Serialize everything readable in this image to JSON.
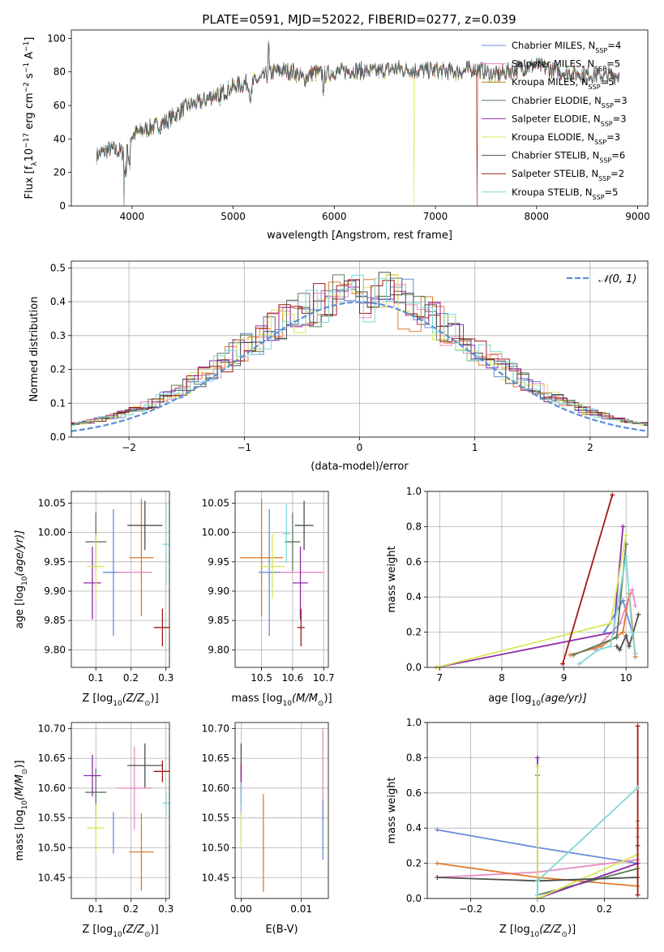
{
  "chart_data": [
    {
      "id": "spectrum",
      "type": "line",
      "title": "PLATE=0591, MJD=52022, FIBERID=0277, z=0.039",
      "xlabel": "wavelength [Angstrom, rest frame]",
      "ylabel_parts": [
        "Flux [f",
        "λ",
        "10",
        "−17",
        " erg cm",
        "−2",
        " s",
        "−1",
        " A",
        "−1",
        "]"
      ],
      "xlim": [
        3400,
        9100
      ],
      "ylim": [
        0,
        105
      ],
      "xticks": [
        4000,
        5000,
        6000,
        7000,
        8000,
        9000
      ],
      "yticks": [
        0,
        20,
        40,
        60,
        80,
        100
      ],
      "grid": false,
      "legend_position": "top-right",
      "continuum": {
        "x": [
          3650,
          3700,
          3800,
          3900,
          4000,
          4100,
          4200,
          4300,
          4400,
          4500,
          4600,
          4700,
          4800,
          4900,
          5000,
          5100,
          5200,
          5300,
          5400,
          5500,
          5600,
          5700,
          5800,
          5900,
          6000,
          6200,
          6400,
          6600,
          6800,
          7000,
          7200,
          7400,
          7600,
          7800,
          8000,
          8200,
          8400,
          8600,
          8800
        ],
        "y": [
          30,
          32,
          34,
          32,
          42,
          45,
          47,
          49,
          53,
          58,
          61,
          62,
          66,
          68,
          71,
          73,
          74,
          77,
          80,
          81,
          80,
          76,
          80,
          78,
          80,
          81,
          80,
          82,
          81,
          81,
          80,
          82,
          78,
          82,
          84,
          80,
          79,
          78,
          78
        ]
      },
      "series": [
        {
          "name": "Chabrier MILES, N",
          "subscript": "SSP",
          "suffix": "=4",
          "color": "#6a8bdc"
        },
        {
          "name": "Salpeter MILES, N",
          "subscript": "SSP",
          "suffix": "=5",
          "color": "#e88ac4"
        },
        {
          "name": "Kroupa MILES, N",
          "subscript": "SSP",
          "suffix": "=5",
          "color": "#b8860b"
        },
        {
          "name": "Chabrier ELODIE, N",
          "subscript": "SSP",
          "suffix": "=3",
          "color": "#5a7a5a"
        },
        {
          "name": "Salpeter ELODIE, N",
          "subscript": "SSP",
          "suffix": "=3",
          "color": "#8e2ca8"
        },
        {
          "name": "Kroupa ELODIE, N",
          "subscript": "SSP",
          "suffix": "=3",
          "color": "#d8e85a"
        },
        {
          "name": "Chabrier STELIB, N",
          "subscript": "SSP",
          "suffix": "=6",
          "color": "#4d4d4d"
        },
        {
          "name": "Salpeter STELIB, N",
          "subscript": "SSP",
          "suffix": "=2",
          "color": "#a01818"
        },
        {
          "name": "Kroupa STELIB, N",
          "subscript": "SSP",
          "suffix": "=5",
          "color": "#7fd6d6"
        }
      ]
    },
    {
      "id": "residuals",
      "type": "histogram",
      "xlabel": "(data-model)/error",
      "ylabel": "Normed distribution",
      "xlim": [
        -2.5,
        2.5
      ],
      "ylim": [
        0,
        0.52
      ],
      "xticks": [
        -2,
        -1,
        0,
        1,
        2
      ],
      "xtick_labels": [
        "−2",
        "−1",
        "0",
        "1",
        "2"
      ],
      "yticks": [
        0.0,
        0.1,
        0.2,
        0.3,
        0.4,
        0.5
      ],
      "ytick_labels": [
        "0.0",
        "0.1",
        "0.2",
        "0.3",
        "0.4",
        "0.5"
      ],
      "grid": true,
      "legend": "𝒩(0, 1)",
      "legend_position": "top-right",
      "normal_curve_color": "#5b8fd6"
    },
    {
      "id": "age_vs_Z",
      "type": "errorbar",
      "xlabel_parts": [
        "Z [log",
        "10",
        "(Z/Z",
        "⊙",
        ")]"
      ],
      "ylabel_parts": [
        "age  [log",
        "10",
        "(age/yr)]"
      ],
      "xlim": [
        0.03,
        0.31
      ],
      "ylim": [
        9.77,
        10.07
      ],
      "xticks": [
        0.1,
        0.2,
        0.3
      ],
      "xtick_labels": [
        "0.1",
        "0.2",
        "0.3"
      ],
      "yticks": [
        9.8,
        9.85,
        9.9,
        9.95,
        10.0,
        10.05
      ],
      "ytick_labels": [
        "9.80",
        "9.85",
        "9.90",
        "9.95",
        "10.00",
        "10.05"
      ],
      "grid": true,
      "points": [
        {
          "x": 0.15,
          "xerr": 0.03,
          "y": 9.932,
          "yerr": 0.108,
          "color": "#6a8bdc"
        },
        {
          "x": 0.21,
          "xerr": 0.05,
          "y": 9.932,
          "yerr": 0.0,
          "color": "#e88ac4"
        },
        {
          "x": 0.23,
          "xerr": 0.035,
          "y": 9.957,
          "yerr": 0.1,
          "color": "#e07a2a"
        },
        {
          "x": 0.1,
          "xerr": 0.03,
          "y": 9.984,
          "yerr": 0.05,
          "color": "#5a7a5a"
        },
        {
          "x": 0.09,
          "xerr": 0.025,
          "y": 9.914,
          "yerr": 0.062,
          "color": "#8e2ca8"
        },
        {
          "x": 0.1,
          "xerr": 0.025,
          "y": 9.942,
          "yerr": 0.055,
          "color": "#d8e85a"
        },
        {
          "x": 0.24,
          "xerr": 0.05,
          "y": 10.012,
          "yerr": 0.042,
          "color": "#4d4d4d"
        },
        {
          "x": 0.29,
          "xerr": 0.025,
          "y": 9.838,
          "yerr": 0.032,
          "color": "#a01818"
        },
        {
          "x": 0.3,
          "xerr": 0.01,
          "y": 9.98,
          "yerr": 0.07,
          "color": "#7fd6d6"
        }
      ]
    },
    {
      "id": "age_vs_mass",
      "type": "errorbar",
      "xlabel_parts": [
        "mass [log",
        "10",
        "(M/M",
        "⊙",
        ")]"
      ],
      "xlim": [
        10.415,
        10.715
      ],
      "ylim": [
        9.77,
        10.07
      ],
      "xticks": [
        10.5,
        10.6,
        10.7
      ],
      "xtick_labels": [
        "10.5",
        "10.6",
        "10.7"
      ],
      "yticks": [
        9.8,
        9.85,
        9.9,
        9.95,
        10.0,
        10.05
      ],
      "ytick_labels": [
        "9.80",
        "9.85",
        "9.90",
        "9.95",
        "10.00",
        "10.05"
      ],
      "grid": true,
      "points": [
        {
          "x": 10.525,
          "xerr": 0.035,
          "y": 9.932,
          "yerr": 0.108,
          "color": "#6a8bdc"
        },
        {
          "x": 10.63,
          "xerr": 0.07,
          "y": 9.932,
          "yerr": 0.0,
          "color": "#e88ac4"
        },
        {
          "x": 10.5,
          "xerr": 0.07,
          "y": 9.957,
          "yerr": 0.1,
          "color": "#e07a2a"
        },
        {
          "x": 10.6,
          "xerr": 0.025,
          "y": 9.984,
          "yerr": 0.05,
          "color": "#5a7a5a"
        },
        {
          "x": 10.625,
          "xerr": 0.025,
          "y": 9.914,
          "yerr": 0.062,
          "color": "#8e2ca8"
        },
        {
          "x": 10.535,
          "xerr": 0.04,
          "y": 9.942,
          "yerr": 0.055,
          "color": "#d8e85a"
        },
        {
          "x": 10.637,
          "xerr": 0.03,
          "y": 10.012,
          "yerr": 0.042,
          "color": "#4d4d4d"
        },
        {
          "x": 10.627,
          "xerr": 0.012,
          "y": 9.838,
          "yerr": 0.032,
          "color": "#a01818"
        },
        {
          "x": 10.58,
          "xerr": 0.012,
          "y": 9.998,
          "yerr": 0.05,
          "color": "#7fd6d6"
        }
      ]
    },
    {
      "id": "weight_vs_age",
      "type": "line",
      "xlabel_parts": [
        "age  [log",
        "10",
        "(age/yr)]"
      ],
      "ylabel": "mass weight",
      "xlim": [
        6.8,
        10.35
      ],
      "ylim": [
        0,
        1.0
      ],
      "xticks": [
        7,
        8,
        9,
        10
      ],
      "xtick_labels": [
        "7",
        "8",
        "9",
        "10"
      ],
      "yticks": [
        0,
        0.2,
        0.4,
        0.6,
        0.8,
        1.0
      ],
      "ytick_labels": [
        "0.0",
        "0.2",
        "0.4",
        "0.6",
        "0.8",
        "1.0"
      ],
      "grid": true,
      "series": [
        {
          "color": "#6a8bdc",
          "x": [
            9.65,
            9.95,
            10.1
          ],
          "y": [
            0.2,
            0.38,
            0.2
          ]
        },
        {
          "color": "#e88ac4",
          "x": [
            9.5,
            9.9,
            10.1,
            10.15
          ],
          "y": [
            0.1,
            0.25,
            0.44,
            0.35
          ]
        },
        {
          "color": "#e07a2a",
          "x": [
            9.1,
            9.6,
            9.95,
            10.05,
            10.15
          ],
          "y": [
            0.07,
            0.12,
            0.2,
            0.42,
            0.06
          ]
        },
        {
          "color": "#5a7a5a",
          "x": [
            9.15,
            9.85,
            10.0
          ],
          "y": [
            0.07,
            0.17,
            0.7
          ]
        },
        {
          "color": "#8e2ca8",
          "x": [
            6.95,
            9.8,
            9.95
          ],
          "y": [
            0.0,
            0.2,
            0.8
          ]
        },
        {
          "color": "#d8e85a",
          "x": [
            6.95,
            9.75,
            10.0
          ],
          "y": [
            0.0,
            0.25,
            0.75
          ]
        },
        {
          "color": "#4d4d4d",
          "x": [
            9.85,
            9.9,
            10.0,
            10.05,
            10.2
          ],
          "y": [
            0.12,
            0.1,
            0.18,
            0.12,
            0.3
          ]
        },
        {
          "color": "#a01818",
          "x": [
            8.98,
            9.78
          ],
          "y": [
            0.02,
            0.98
          ]
        },
        {
          "color": "#7fd6d6",
          "x": [
            9.25,
            9.55,
            9.75,
            10.0,
            10.1,
            10.15
          ],
          "y": [
            0.02,
            0.1,
            0.12,
            0.63,
            0.2,
            0.08
          ]
        }
      ]
    },
    {
      "id": "mass_vs_Z",
      "type": "errorbar",
      "xlabel_parts": [
        "Z [log",
        "10",
        "(Z/Z",
        "⊙",
        ")]"
      ],
      "ylabel_parts": [
        "mass [log",
        "10",
        "(M/M",
        "⊙",
        ")]"
      ],
      "xlim": [
        0.03,
        0.31
      ],
      "ylim": [
        10.415,
        10.71
      ],
      "xticks": [
        0.1,
        0.2,
        0.3
      ],
      "xtick_labels": [
        "0.1",
        "0.2",
        "0.3"
      ],
      "yticks": [
        10.45,
        10.5,
        10.55,
        10.6,
        10.65,
        10.7
      ],
      "ytick_labels": [
        "10.45",
        "10.50",
        "10.55",
        "10.60",
        "10.65",
        "10.70"
      ],
      "grid": true,
      "points": [
        {
          "x": 0.15,
          "xerr": 0.0,
          "y": 10.525,
          "yerr": 0.035,
          "color": "#6a8bdc"
        },
        {
          "x": 0.21,
          "xerr": 0.05,
          "y": 10.6,
          "yerr": 0.07,
          "color": "#e88ac4"
        },
        {
          "x": 0.23,
          "xerr": 0.035,
          "y": 10.493,
          "yerr": 0.065,
          "color": "#e07a2a"
        },
        {
          "x": 0.1,
          "xerr": 0.03,
          "y": 10.593,
          "yerr": 0.04,
          "color": "#5a7a5a"
        },
        {
          "x": 0.09,
          "xerr": 0.025,
          "y": 10.621,
          "yerr": 0.035,
          "color": "#8e2ca8"
        },
        {
          "x": 0.1,
          "xerr": 0.025,
          "y": 10.533,
          "yerr": 0.04,
          "color": "#d8e85a"
        },
        {
          "x": 0.24,
          "xerr": 0.05,
          "y": 10.638,
          "yerr": 0.037,
          "color": "#4d4d4d"
        },
        {
          "x": 0.29,
          "xerr": 0.025,
          "y": 10.628,
          "yerr": 0.018,
          "color": "#a01818"
        },
        {
          "x": 0.3,
          "xerr": 0.01,
          "y": 10.575,
          "yerr": 0.02,
          "color": "#7fd6d6"
        }
      ]
    },
    {
      "id": "mass_vs_ebv",
      "type": "errorbar",
      "xlabel": "E(B-V)",
      "xlim": [
        -0.001,
        0.0145
      ],
      "ylim": [
        10.415,
        10.71
      ],
      "xticks": [
        0.0,
        0.01
      ],
      "xtick_labels": [
        "0.00",
        "0.01"
      ],
      "yticks": [
        10.45,
        10.5,
        10.55,
        10.6,
        10.65,
        10.7
      ],
      "ytick_labels": [
        "10.45",
        "10.50",
        "10.55",
        "10.60",
        "10.65",
        "10.70"
      ],
      "grid": true,
      "points": [
        {
          "x": 0.0,
          "xerr": 0.0,
          "y": 10.625,
          "yerr": 0.05,
          "color": "#4d4d4d"
        },
        {
          "x": 0.0,
          "xerr": 0.0,
          "y": 10.62,
          "yerr": 0.02,
          "color": "#a01818"
        },
        {
          "x": 0.0,
          "xerr": 0.0,
          "y": 10.595,
          "yerr": 0.04,
          "color": "#8e2ca8"
        },
        {
          "x": 0.0,
          "xerr": 0.0,
          "y": 10.56,
          "yerr": 0.05,
          "color": "#7fd6d6"
        },
        {
          "x": 0.0,
          "xerr": 0.0,
          "y": 10.53,
          "yerr": 0.03,
          "color": "#d8e85a"
        },
        {
          "x": 0.0037,
          "xerr": 0.0,
          "y": 10.508,
          "yerr": 0.082,
          "color": "#e07a2a"
        },
        {
          "x": 0.0136,
          "xerr": 0.0,
          "y": 10.62,
          "yerr": 0.08,
          "color": "#e88ac4"
        },
        {
          "x": 0.0136,
          "xerr": 0.0,
          "y": 10.53,
          "yerr": 0.05,
          "color": "#6a8bdc"
        }
      ]
    },
    {
      "id": "weight_vs_Z",
      "type": "line",
      "xlabel_parts": [
        "Z [log",
        "10",
        "(Z/Z",
        "⊙",
        ")]"
      ],
      "ylabel": "mass weight",
      "xlim": [
        -0.33,
        0.33
      ],
      "ylim": [
        0,
        1.0
      ],
      "xticks": [
        -0.2,
        0.0,
        0.2
      ],
      "xtick_labels": [
        "−0.2",
        "0.0",
        "0.2"
      ],
      "yticks": [
        0,
        0.2,
        0.4,
        0.6,
        0.8,
        1.0
      ],
      "ytick_labels": [
        "0.0",
        "0.2",
        "0.4",
        "0.6",
        "0.8",
        "1.0"
      ],
      "grid": true,
      "series": [
        {
          "color": "#6a8bdc",
          "x": [
            -0.3,
            0.0,
            0.3
          ],
          "y": [
            0.39,
            0.29,
            0.2
          ]
        },
        {
          "color": "#e88ac4",
          "x": [
            -0.3,
            0.0,
            0.3,
            0.3
          ],
          "y": [
            0.12,
            0.15,
            0.22,
            0.35
          ]
        },
        {
          "color": "#e07a2a",
          "x": [
            -0.3,
            0.0,
            0.3,
            0.3,
            0.3
          ],
          "y": [
            0.2,
            0.12,
            0.07,
            0.4,
            0.44
          ]
        },
        {
          "color": "#5a7a5a",
          "x": [
            0.0,
            0.0,
            0.3
          ],
          "y": [
            0.7,
            0.02,
            0.17
          ]
        },
        {
          "color": "#8e2ca8",
          "x": [
            0.0,
            0.0,
            0.3
          ],
          "y": [
            0.8,
            0.0,
            0.2
          ]
        },
        {
          "color": "#d8e85a",
          "x": [
            0.0,
            0.0,
            0.3
          ],
          "y": [
            0.75,
            0.0,
            0.25
          ]
        },
        {
          "color": "#4d4d4d",
          "x": [
            -0.3,
            0.0,
            0.3,
            0.3
          ],
          "y": [
            0.12,
            0.1,
            0.12,
            0.3
          ]
        },
        {
          "color": "#a01818",
          "x": [
            0.3,
            0.3
          ],
          "y": [
            0.98,
            0.02
          ]
        },
        {
          "color": "#7fd6d6",
          "x": [
            0.0,
            0.0,
            0.3
          ],
          "y": [
            0.02,
            0.1,
            0.63
          ]
        }
      ]
    }
  ]
}
